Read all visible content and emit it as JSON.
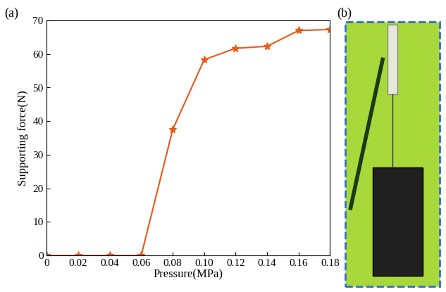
{
  "chart_data": {
    "type": "line",
    "annotations": [
      "(a)",
      "(b)"
    ],
    "x_label": "Pressure(MPa)",
    "y_label": "Supporting force(N)",
    "x": [
      0,
      0.02,
      0.04,
      0.06,
      0.08,
      0.1,
      0.12,
      0.14,
      0.16,
      0.18
    ],
    "values": [
      0,
      0,
      0,
      0,
      37.5,
      58.3,
      61.7,
      62.3,
      67.0,
      67.3
    ],
    "color": "#e8591a",
    "marker": "star",
    "line_style": "solid",
    "xlim": [
      0,
      0.18
    ],
    "xticks": [
      0,
      0.02,
      0.04,
      0.06,
      0.08,
      {
        "value": 0.1,
        "label": "0.10"
      },
      0.12,
      0.14,
      0.16,
      0.18
    ],
    "ylim": [
      0,
      70
    ],
    "yticks": [
      0,
      10,
      20,
      30,
      40,
      50,
      60,
      70
    ],
    "grid": false
  }
}
